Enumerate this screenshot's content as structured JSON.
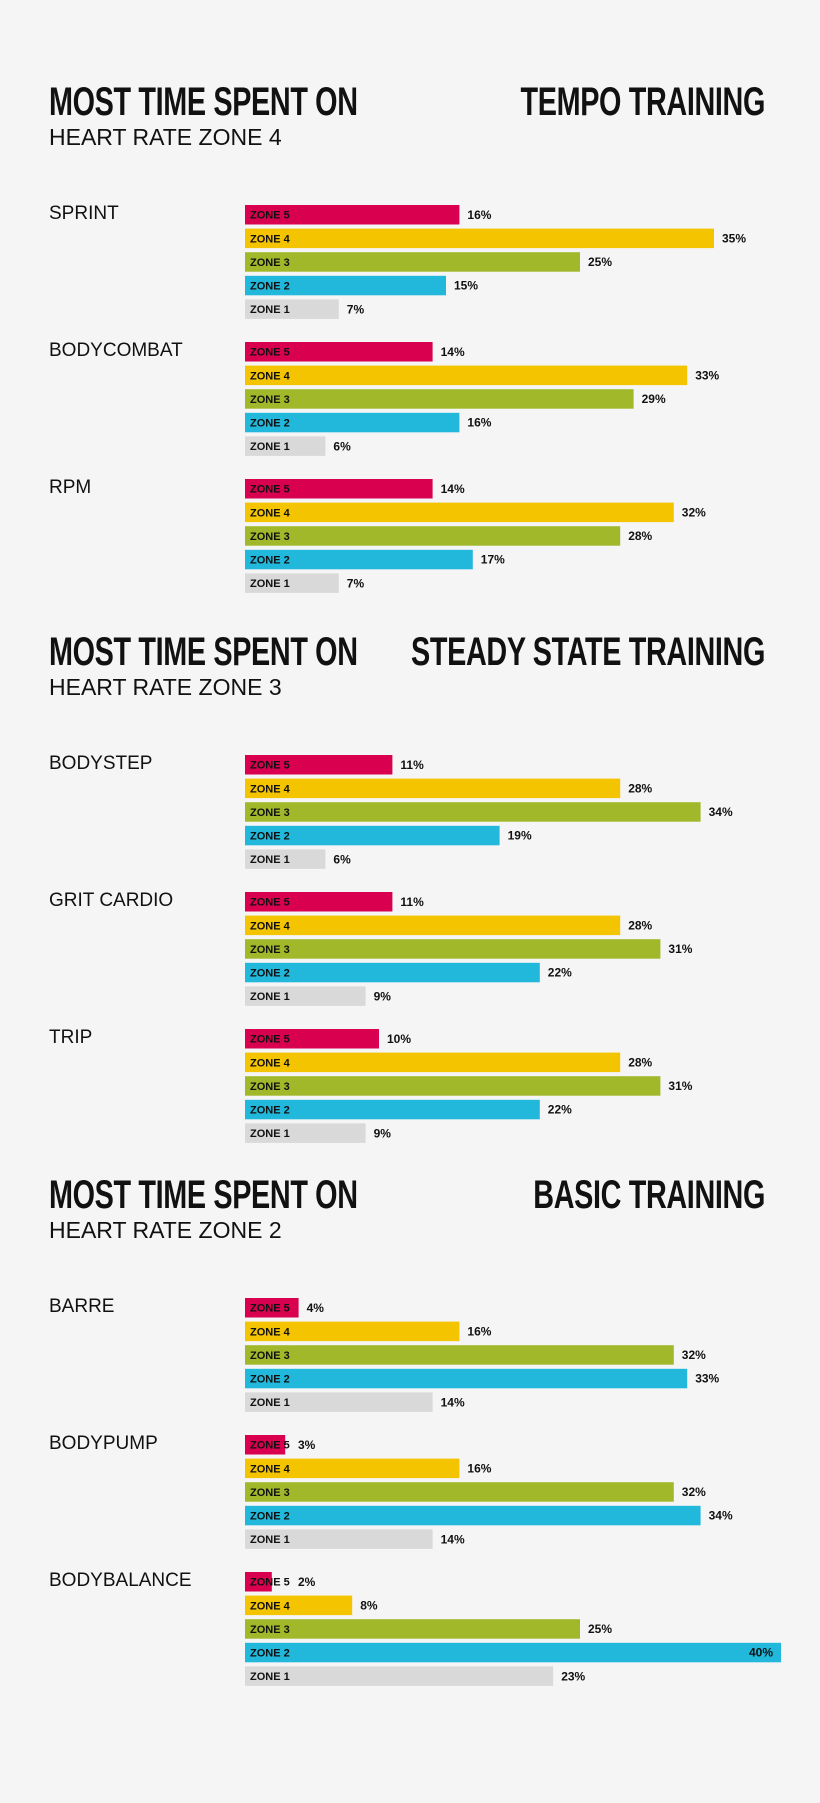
{
  "sections": [
    {
      "heading": "MOST TIME SPENT ON",
      "subheading": "HEART RATE ZONE 4",
      "training": "TEMPO TRAINING",
      "charts": [
        {
          "type": "bar",
          "title": "SPRINT",
          "categories": [
            "ZONE 5",
            "ZONE 4",
            "ZONE 3",
            "ZONE 2",
            "ZONE 1"
          ],
          "values": [
            16,
            35,
            25,
            15,
            7
          ],
          "value_labels": [
            "16%",
            "35%",
            "25%",
            "15%",
            "7%"
          ],
          "colors": [
            "#d9004f",
            "#f5c400",
            "#a1b82a",
            "#22b8dc",
            "#d9d9d9"
          ]
        },
        {
          "type": "bar",
          "title": "BODYCOMBAT",
          "categories": [
            "ZONE 5",
            "ZONE 4",
            "ZONE 3",
            "ZONE 2",
            "ZONE 1"
          ],
          "values": [
            14,
            33,
            29,
            16,
            6
          ],
          "value_labels": [
            "14%",
            "33%",
            "29%",
            "16%",
            "6%"
          ],
          "colors": [
            "#d9004f",
            "#f5c400",
            "#a1b82a",
            "#22b8dc",
            "#d9d9d9"
          ]
        },
        {
          "type": "bar",
          "title": "RPM",
          "categories": [
            "ZONE 5",
            "ZONE 4",
            "ZONE 3",
            "ZONE 2",
            "ZONE 1"
          ],
          "values": [
            14,
            32,
            28,
            17,
            7
          ],
          "value_labels": [
            "14%",
            "32%",
            "28%",
            "17%",
            "7%"
          ],
          "colors": [
            "#d9004f",
            "#f5c400",
            "#a1b82a",
            "#22b8dc",
            "#d9d9d9"
          ]
        }
      ]
    },
    {
      "heading": "MOST TIME SPENT ON",
      "subheading": "HEART RATE ZONE 3",
      "training": "STEADY STATE TRAINING",
      "charts": [
        {
          "type": "bar",
          "title": "BODYSTEP",
          "categories": [
            "ZONE 5",
            "ZONE 4",
            "ZONE 3",
            "ZONE 2",
            "ZONE 1"
          ],
          "values": [
            11,
            28,
            34,
            19,
            6
          ],
          "value_labels": [
            "11%",
            "28%",
            "34%",
            "19%",
            "6%"
          ],
          "colors": [
            "#d9004f",
            "#f5c400",
            "#a1b82a",
            "#22b8dc",
            "#d9d9d9"
          ]
        },
        {
          "type": "bar",
          "title": "GRIT CARDIO",
          "categories": [
            "ZONE 5",
            "ZONE 4",
            "ZONE 3",
            "ZONE 2",
            "ZONE 1"
          ],
          "values": [
            11,
            28,
            31,
            22,
            9
          ],
          "value_labels": [
            "11%",
            "28%",
            "31%",
            "22%",
            "9%"
          ],
          "colors": [
            "#d9004f",
            "#f5c400",
            "#a1b82a",
            "#22b8dc",
            "#d9d9d9"
          ]
        },
        {
          "type": "bar",
          "title": "TRIP",
          "categories": [
            "ZONE 5",
            "ZONE 4",
            "ZONE 3",
            "ZONE 2",
            "ZONE 1"
          ],
          "values": [
            10,
            28,
            31,
            22,
            9
          ],
          "value_labels": [
            "10%",
            "28%",
            "31%",
            "22%",
            "9%"
          ],
          "colors": [
            "#d9004f",
            "#f5c400",
            "#a1b82a",
            "#22b8dc",
            "#d9d9d9"
          ]
        }
      ]
    },
    {
      "heading": "MOST TIME SPENT ON",
      "subheading": "HEART RATE ZONE 2",
      "training": "BASIC TRAINING",
      "charts": [
        {
          "type": "bar",
          "title": "BARRE",
          "categories": [
            "ZONE 5",
            "ZONE 4",
            "ZONE 3",
            "ZONE 2",
            "ZONE 1"
          ],
          "values": [
            4,
            16,
            32,
            33,
            14
          ],
          "value_labels": [
            "4%",
            "16%",
            "32%",
            "33%",
            "14%"
          ],
          "colors": [
            "#d9004f",
            "#f5c400",
            "#a1b82a",
            "#22b8dc",
            "#d9d9d9"
          ]
        },
        {
          "type": "bar",
          "title": "BODYPUMP",
          "categories": [
            "ZONE 5",
            "ZONE 4",
            "ZONE 3",
            "ZONE 2",
            "ZONE 1"
          ],
          "values": [
            3,
            16,
            32,
            34,
            14
          ],
          "value_labels": [
            "3%",
            "16%",
            "32%",
            "34%",
            "14%"
          ],
          "colors": [
            "#d9004f",
            "#f5c400",
            "#a1b82a",
            "#22b8dc",
            "#d9d9d9"
          ]
        },
        {
          "type": "bar",
          "title": "BODYBALANCE",
          "categories": [
            "ZONE 5",
            "ZONE 4",
            "ZONE 3",
            "ZONE 2",
            "ZONE 1"
          ],
          "values": [
            2,
            8,
            25,
            40,
            23
          ],
          "value_labels": [
            "2%",
            "8%",
            "25%",
            "40%",
            "23%"
          ],
          "colors": [
            "#d9004f",
            "#f5c400",
            "#a1b82a",
            "#22b8dc",
            "#d9d9d9"
          ]
        }
      ]
    }
  ]
}
